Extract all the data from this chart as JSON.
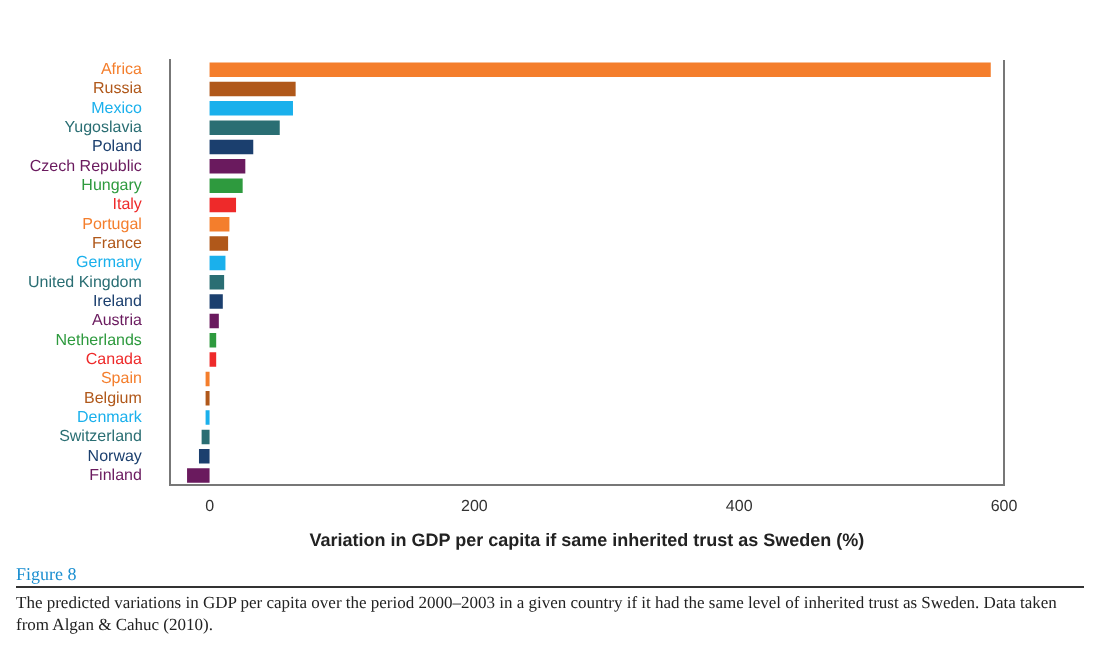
{
  "chart_data": {
    "type": "bar",
    "orientation": "horizontal",
    "categories": [
      "Africa",
      "Russia",
      "Mexico",
      "Yugoslavia",
      "Poland",
      "Czech Republic",
      "Hungary",
      "Italy",
      "Portugal",
      "France",
      "Germany",
      "United Kingdom",
      "Ireland",
      "Austria",
      "Netherlands",
      "Canada",
      "Spain",
      "Belgium",
      "Denmark",
      "Switzerland",
      "Norway",
      "Finland"
    ],
    "values": [
      590,
      65,
      63,
      53,
      33,
      27,
      25,
      20,
      15,
      14,
      12,
      11,
      10,
      7,
      5,
      5,
      -3,
      -3,
      -3,
      -6,
      -8,
      -17
    ],
    "colors": [
      "#f47e2c",
      "#b0581a",
      "#1ab0ec",
      "#2a6e73",
      "#1b3f6e",
      "#6a1a5e",
      "#2e9a3e",
      "#ee2a2a",
      "#f47e2c",
      "#b0581a",
      "#1ab0ec",
      "#2a6e73",
      "#1b3f6e",
      "#6a1a5e",
      "#2e9a3e",
      "#ee2a2a",
      "#f47e2c",
      "#b0581a",
      "#1ab0ec",
      "#2a6e73",
      "#1b3f6e",
      "#6a1a5e"
    ],
    "xlabel": "Variation in GDP per capita if same inherited trust as Sweden (%)",
    "xlim": [
      -30,
      600
    ],
    "xticks": [
      0,
      200,
      400,
      600
    ],
    "grid": false,
    "legend": false,
    "annotations": [
      "Figure 8",
      "The predicted variations in GDP per capita over the period 2000–2003 in a given country if it had the same level of inherited trust as Sweden. Data taken from Algan & Cahuc (2010)."
    ]
  }
}
